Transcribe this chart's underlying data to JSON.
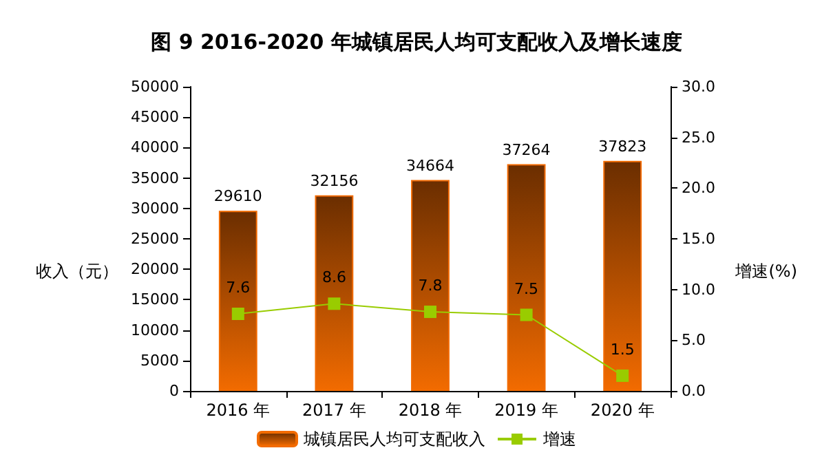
{
  "chart_data": {
    "type": "bar",
    "title": "图 9 2016-2020 年城镇居民人均可支配收入及增长速度",
    "ylabel": "收入（元）",
    "y2label": "增速(%)",
    "categories": [
      "2016 年",
      "2017 年",
      "2018 年",
      "2019 年",
      "2020 年"
    ],
    "series": [
      {
        "name": "城镇居民人均可支配收入",
        "color": "#f26b00",
        "values": [
          29610,
          32156,
          34664,
          37264,
          37823
        ]
      },
      {
        "name": "增速",
        "type": "line",
        "axis": "y2",
        "color": "#99cc00",
        "values": [
          7.6,
          8.6,
          7.8,
          7.5,
          1.5
        ]
      }
    ],
    "ylim": [
      0,
      50000
    ],
    "yticks": [
      0,
      5000,
      10000,
      15000,
      20000,
      25000,
      30000,
      35000,
      40000,
      45000,
      50000
    ],
    "y2lim": [
      0,
      30
    ],
    "y2ticks": [
      {
        "value": 0,
        "label": "0.0"
      },
      {
        "value": 5,
        "label": "5.0"
      },
      {
        "value": 10,
        "label": "10.0"
      },
      {
        "value": 15,
        "label": "15.0"
      },
      {
        "value": 20,
        "label": "20.0"
      },
      {
        "value": 25,
        "label": "25.0"
      },
      {
        "value": 30,
        "label": "30.0"
      }
    ],
    "data_labels": true,
    "marker": "square",
    "legend": "bottom",
    "grid": false
  }
}
